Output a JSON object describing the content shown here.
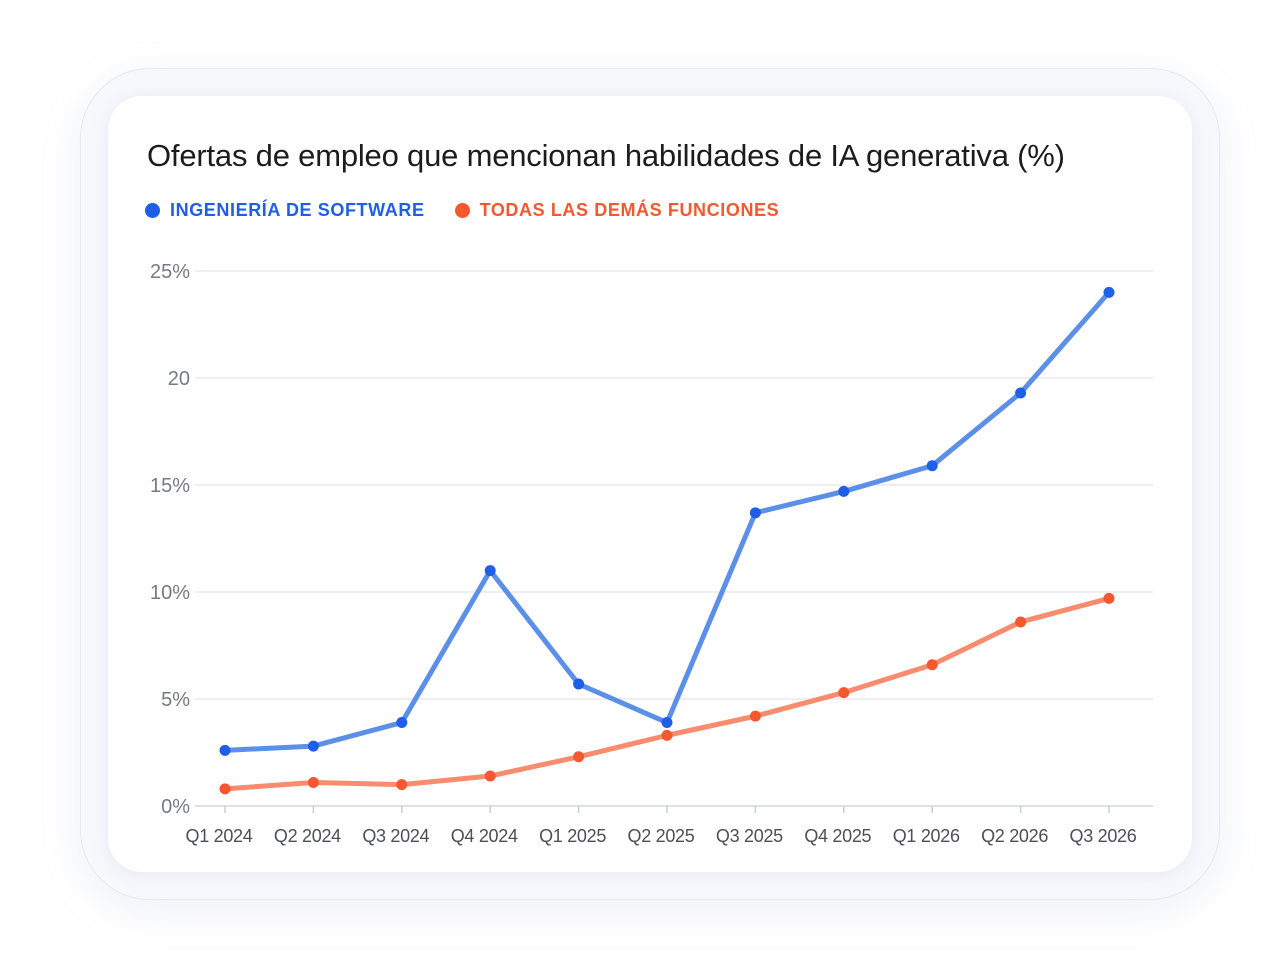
{
  "title": "Ofertas de empleo que mencionan habilidades de IA generativa (%)",
  "colors": {
    "software": "#1f5ee8",
    "software_line": "#5b8fe8",
    "others": "#f4582f",
    "others_line": "#f98c6e",
    "grid": "#e3e5ea",
    "tick": "#777a82",
    "xtick": "#4c4f57"
  },
  "chart_data": {
    "type": "line",
    "title": "Ofertas de empleo que mencionan habilidades de IA generativa (%)",
    "categories": [
      "Q1 2024",
      "Q2 2024",
      "Q3 2024",
      "Q4 2024",
      "Q1 2025",
      "Q2 2025",
      "Q3 2025",
      "Q4 2025",
      "Q1 2026",
      "Q2 2026",
      "Q3 2026"
    ],
    "series": [
      {
        "name": "INGENIERÍA DE SOFTWARE",
        "values": [
          2.6,
          2.8,
          3.9,
          11.0,
          5.7,
          3.9,
          13.7,
          14.7,
          15.9,
          19.3,
          24.0
        ]
      },
      {
        "name": "TODAS LAS DEMÁS FUNCIONES",
        "values": [
          0.8,
          1.1,
          1.0,
          1.4,
          2.3,
          3.3,
          4.2,
          5.3,
          6.6,
          8.6,
          9.7
        ]
      }
    ],
    "ylim": [
      0,
      25
    ],
    "yticks": [
      {
        "value": 0,
        "label": "0%"
      },
      {
        "value": 5,
        "label": "5%"
      },
      {
        "value": 10,
        "label": "10%"
      },
      {
        "value": 15,
        "label": "15%"
      },
      {
        "value": 20,
        "label": "20"
      },
      {
        "value": 25,
        "label": "25%"
      }
    ],
    "grid": true,
    "legend_position": "top-left"
  }
}
